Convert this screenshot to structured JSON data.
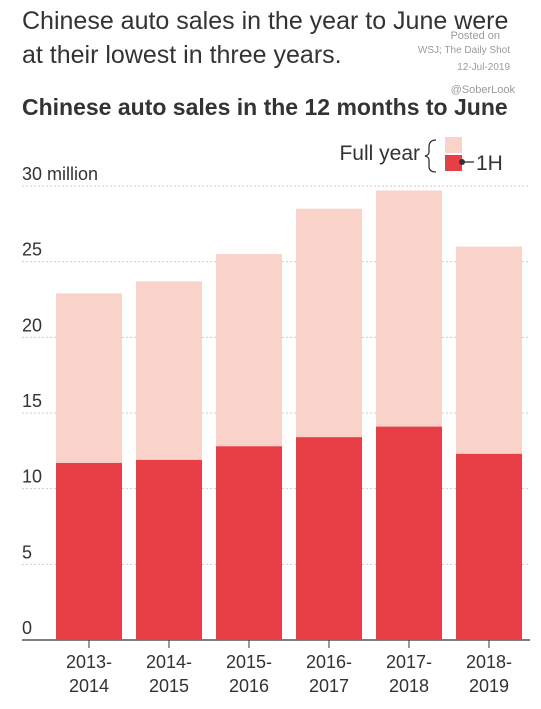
{
  "headline": "Chinese auto sales in the year to June were at their lowest in three years.",
  "credit": {
    "posted_on": "Posted on",
    "source": "WSJ; The Daily Shot",
    "date": "12-Jul-2019",
    "handle": "@SoberLook"
  },
  "chart_data": {
    "type": "bar",
    "title": "Chinese auto sales in the 12 months to June",
    "categories": [
      [
        "2013-",
        "2014"
      ],
      [
        "2014-",
        "2015"
      ],
      [
        "2015-",
        "2016"
      ],
      [
        "2016-",
        "2017"
      ],
      [
        "2017-",
        "2018"
      ],
      [
        "2018-",
        "2019"
      ]
    ],
    "series": [
      {
        "name": "1H",
        "values": [
          11.7,
          11.9,
          12.8,
          13.4,
          14.1,
          12.3
        ]
      },
      {
        "name": "Full year",
        "values": [
          22.9,
          23.7,
          25.5,
          28.5,
          29.7,
          26.0
        ]
      }
    ],
    "ylim": [
      0,
      30
    ],
    "yticks": [
      0,
      5,
      10,
      15,
      20,
      25
    ],
    "top_tick_label": "30 million",
    "legend": {
      "full_year": "Full year",
      "first_half": "1H",
      "position": "top-right"
    },
    "colors": {
      "full_year": "#f9d3ca",
      "first_half": "#e83e46",
      "grid": "#cccccc",
      "axis": "#333333"
    },
    "grid": true
  }
}
